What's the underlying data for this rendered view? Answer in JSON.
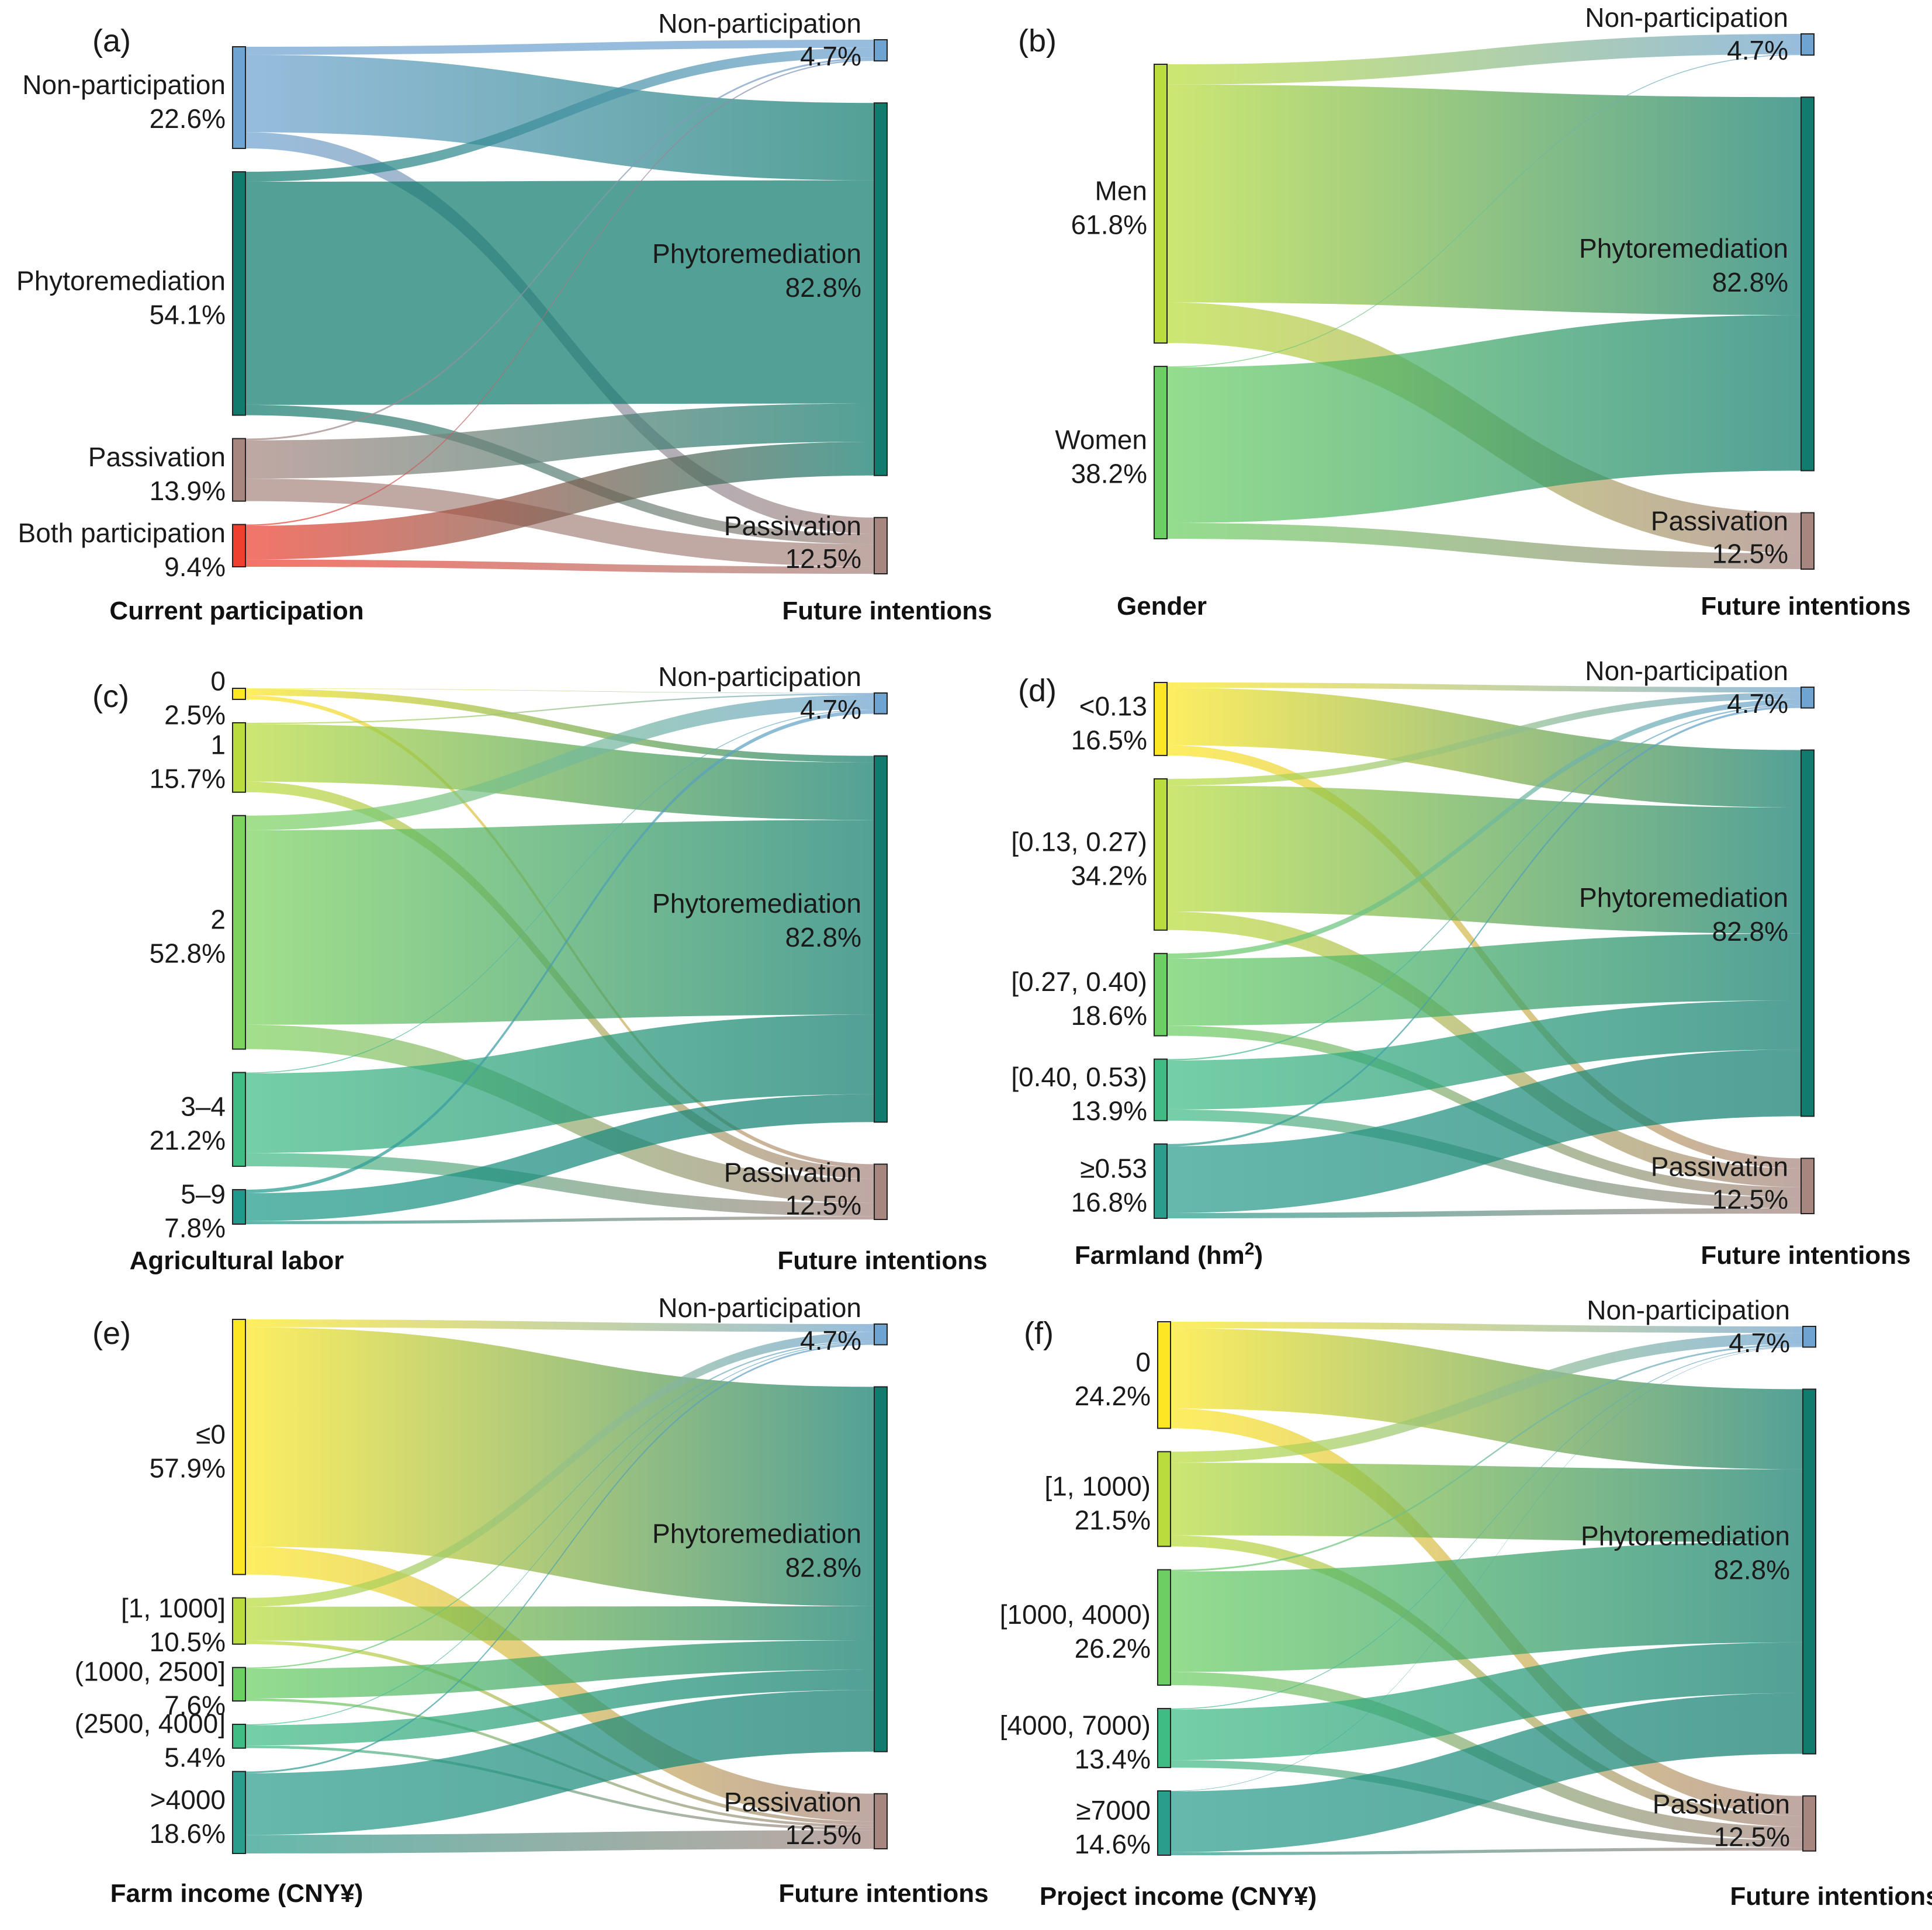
{
  "figure": {
    "panels": [
      {
        "letter": "(a)",
        "source_title": "Current participation",
        "target_title": "Future intentions"
      },
      {
        "letter": "(b)",
        "source_title": "Gender",
        "target_title": "Future intentions"
      },
      {
        "letter": "(c)",
        "source_title": "Agricultural labor",
        "target_title": "Future intentions"
      },
      {
        "letter": "(d)",
        "source_title": "Farmland (hm²)",
        "target_title": "Future intentions"
      },
      {
        "letter": "(e)",
        "source_title": "Farm income (CNY¥)",
        "target_title": "Future intentions"
      },
      {
        "letter": "(f)",
        "source_title": "Project income (CNY¥)",
        "target_title": "Future intentions"
      }
    ]
  },
  "chart_data": [
    {
      "type": "sankey",
      "panel": "(a)",
      "source_title": "Current participation",
      "target_title": "Future intentions",
      "sources": [
        {
          "name": "Non-participation",
          "pct": "22.6%",
          "value": 22.6,
          "color": "#6fa3d0"
        },
        {
          "name": "Phytoremediation",
          "pct": "54.1%",
          "value": 54.1,
          "color": "#117c6e"
        },
        {
          "name": "Passivation",
          "pct": "13.9%",
          "value": 13.9,
          "color": "#a78680"
        },
        {
          "name": "Both participation",
          "pct": "9.4%",
          "value": 9.4,
          "color": "#ef3f2f"
        }
      ],
      "targets": [
        {
          "name": "Non-participation",
          "pct": "4.7%",
          "value": 4.7,
          "color": "#6fa3d0"
        },
        {
          "name": "Phytoremediation",
          "pct": "82.8%",
          "value": 82.8,
          "color": "#117c6e"
        },
        {
          "name": "Passivation",
          "pct": "12.5%",
          "value": 12.5,
          "color": "#a78680"
        }
      ],
      "flows": [
        [
          1.8,
          17.2,
          3.6
        ],
        [
          2.2,
          49.6,
          2.3
        ],
        [
          0.4,
          8.5,
          5.0
        ],
        [
          0.3,
          7.5,
          1.6
        ]
      ]
    },
    {
      "type": "sankey",
      "panel": "(b)",
      "source_title": "Gender",
      "target_title": "Future intentions",
      "sources": [
        {
          "name": "Men",
          "pct": "61.8%",
          "value": 61.8,
          "color": "#b9dd3c"
        },
        {
          "name": "Women",
          "pct": "38.2%",
          "value": 38.2,
          "color": "#6bcf63"
        }
      ],
      "targets": [
        {
          "name": "Non-participation",
          "pct": "4.7%",
          "value": 4.7,
          "color": "#6fa3d0"
        },
        {
          "name": "Phytoremediation",
          "pct": "82.8%",
          "value": 82.8,
          "color": "#117c6e"
        },
        {
          "name": "Passivation",
          "pct": "12.5%",
          "value": 12.5,
          "color": "#a78680"
        }
      ],
      "flows": [
        [
          4.5,
          48.3,
          9.0
        ],
        [
          0.2,
          34.5,
          3.5
        ]
      ]
    },
    {
      "type": "sankey",
      "panel": "(c)",
      "source_title": "Agricultural labor",
      "target_title": "Future intentions",
      "sources": [
        {
          "name": "0",
          "pct": "2.5%",
          "value": 2.5,
          "color": "#fde725"
        },
        {
          "name": "1",
          "pct": "15.7%",
          "value": 15.7,
          "color": "#b9dd3c"
        },
        {
          "name": "2",
          "pct": "52.8%",
          "value": 52.8,
          "color": "#7dd35e"
        },
        {
          "name": "3–4",
          "pct": "21.2%",
          "value": 21.2,
          "color": "#3fbc84"
        },
        {
          "name": "5–9",
          "pct": "7.8%",
          "value": 7.8,
          "color": "#1f9a8a"
        }
      ],
      "targets": [
        {
          "name": "Non-participation",
          "pct": "4.7%",
          "value": 4.7,
          "color": "#6fa3d0"
        },
        {
          "name": "Phytoremediation",
          "pct": "82.8%",
          "value": 82.8,
          "color": "#117c6e"
        },
        {
          "name": "Passivation",
          "pct": "12.5%",
          "value": 12.5,
          "color": "#a78680"
        }
      ],
      "flows": [
        [
          0.1,
          1.5,
          0.9
        ],
        [
          0.3,
          13.0,
          2.4
        ],
        [
          3.3,
          44.0,
          5.5
        ],
        [
          0.2,
          18.0,
          3.0
        ],
        [
          0.8,
          6.3,
          0.7
        ]
      ]
    },
    {
      "type": "sankey",
      "panel": "(d)",
      "source_title": "Farmland (hm²)",
      "target_title": "Future intentions",
      "sources": [
        {
          "name": "<0.13",
          "pct": "16.5%",
          "value": 16.5,
          "color": "#fde725"
        },
        {
          "name": "[0.13, 0.27)",
          "pct": "34.2%",
          "value": 34.2,
          "color": "#b9dd3c"
        },
        {
          "name": "[0.27, 0.40)",
          "pct": "18.6%",
          "value": 18.6,
          "color": "#6bcf63"
        },
        {
          "name": "[0.40, 0.53)",
          "pct": "13.9%",
          "value": 13.9,
          "color": "#3fbc84"
        },
        {
          "name": "≥0.53",
          "pct": "16.8%",
          "value": 16.8,
          "color": "#2a9d8c"
        }
      ],
      "targets": [
        {
          "name": "Non-participation",
          "pct": "4.7%",
          "value": 4.7,
          "color": "#6fa3d0"
        },
        {
          "name": "Phytoremediation",
          "pct": "82.8%",
          "value": 82.8,
          "color": "#117c6e"
        },
        {
          "name": "Passivation",
          "pct": "12.5%",
          "value": 12.5,
          "color": "#a78680"
        }
      ],
      "flows": [
        [
          1.2,
          13.0,
          2.3
        ],
        [
          1.5,
          28.5,
          4.2
        ],
        [
          1.2,
          15.1,
          2.3
        ],
        [
          0.3,
          11.1,
          2.5
        ],
        [
          0.5,
          15.1,
          1.2
        ]
      ]
    },
    {
      "type": "sankey",
      "panel": "(e)",
      "source_title": "Farm income (CNY¥)",
      "target_title": "Future intentions",
      "sources": [
        {
          "name": "≤0",
          "pct": "57.9%",
          "value": 57.9,
          "color": "#fde725"
        },
        {
          "name": "[1, 1000]",
          "pct": "10.5%",
          "value": 10.5,
          "color": "#b9dd3c"
        },
        {
          "name": "(1000, 2500]",
          "pct": "7.6%",
          "value": 7.6,
          "color": "#6bcf63"
        },
        {
          "name": "(2500, 4000]",
          "pct": "5.4%",
          "value": 5.4,
          "color": "#3fbc84"
        },
        {
          "name": ">4000",
          "pct": "18.6%",
          "value": 18.6,
          "color": "#2a9d8c"
        }
      ],
      "targets": [
        {
          "name": "Non-participation",
          "pct": "4.7%",
          "value": 4.7,
          "color": "#6fa3d0"
        },
        {
          "name": "Phytoremediation",
          "pct": "82.8%",
          "value": 82.8,
          "color": "#117c6e"
        },
        {
          "name": "Passivation",
          "pct": "12.5%",
          "value": 12.5,
          "color": "#a78680"
        }
      ],
      "flows": [
        [
          1.8,
          49.8,
          6.3
        ],
        [
          2.0,
          7.7,
          0.8
        ],
        [
          0.3,
          6.7,
          0.6
        ],
        [
          0.2,
          4.6,
          0.6
        ],
        [
          0.4,
          14.0,
          4.2
        ]
      ]
    },
    {
      "type": "sankey",
      "panel": "(f)",
      "source_title": "Project income (CNY¥)",
      "target_title": "Future intentions",
      "sources": [
        {
          "name": "0",
          "pct": "24.2%",
          "value": 24.2,
          "color": "#fde725"
        },
        {
          "name": "[1, 1000)",
          "pct": "21.5%",
          "value": 21.5,
          "color": "#b9dd3c"
        },
        {
          "name": "[1000, 4000)",
          "pct": "26.2%",
          "value": 26.2,
          "color": "#6bcf63"
        },
        {
          "name": "[4000, 7000)",
          "pct": "13.4%",
          "value": 13.4,
          "color": "#3fbc84"
        },
        {
          "name": "≥7000",
          "pct": "14.6%",
          "value": 14.6,
          "color": "#2a9d8c"
        }
      ],
      "targets": [
        {
          "name": "Non-participation",
          "pct": "4.7%",
          "value": 4.7,
          "color": "#6fa3d0"
        },
        {
          "name": "Phytoremediation",
          "pct": "82.8%",
          "value": 82.8,
          "color": "#117c6e"
        },
        {
          "name": "Passivation",
          "pct": "12.5%",
          "value": 12.5,
          "color": "#a78680"
        }
      ],
      "flows": [
        [
          1.5,
          18.2,
          4.5
        ],
        [
          2.5,
          16.5,
          2.5
        ],
        [
          0.4,
          22.8,
          3.0
        ],
        [
          0.2,
          11.5,
          1.7
        ],
        [
          0.1,
          13.8,
          0.7
        ]
      ]
    }
  ]
}
